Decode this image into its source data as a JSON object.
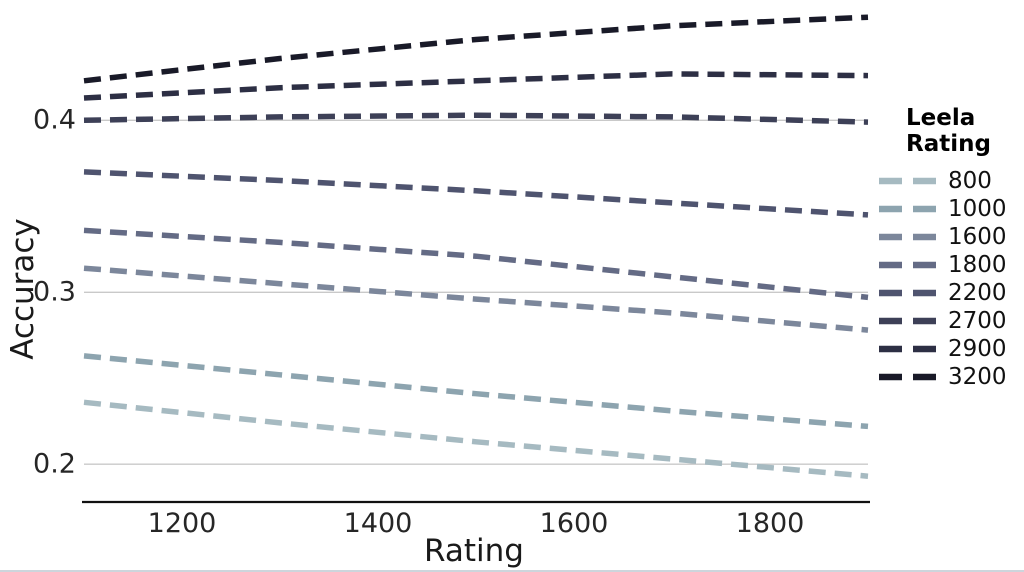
{
  "figure": {
    "background": "#ffffff",
    "bottom_edge_color": "#cdd5dc"
  },
  "chart_data": {
    "type": "line",
    "title": "",
    "xlabel": "Rating",
    "ylabel": "Accuracy",
    "line_style": "dashed",
    "grid": "horizontal-only",
    "grid_color": "#c9c9c9",
    "axis_line_color": "#111111",
    "x": [
      1100,
      1300,
      1500,
      1700,
      1900
    ],
    "xlim": [
      1100,
      1900
    ],
    "ylim": [
      0.178,
      0.47
    ],
    "xticks": [
      1200,
      1400,
      1600,
      1800
    ],
    "yticks": [
      0.2,
      0.3,
      0.4
    ],
    "legend_title": "Leela Rating",
    "legend_position": "right",
    "series": [
      {
        "name": "800",
        "color": "#a6bac1",
        "values": [
          0.236,
          0.224,
          0.213,
          0.203,
          0.193
        ]
      },
      {
        "name": "1000",
        "color": "#8da4af",
        "values": [
          0.263,
          0.252,
          0.241,
          0.231,
          0.222
        ]
      },
      {
        "name": "1600",
        "color": "#7c879b",
        "values": [
          0.314,
          0.305,
          0.296,
          0.288,
          0.278
        ]
      },
      {
        "name": "1800",
        "color": "#646b85",
        "values": [
          0.336,
          0.329,
          0.321,
          0.309,
          0.297
        ]
      },
      {
        "name": "2200",
        "color": "#4f546f",
        "values": [
          0.37,
          0.365,
          0.359,
          0.352,
          0.345
        ]
      },
      {
        "name": "2700",
        "color": "#3d4057",
        "values": [
          0.4,
          0.402,
          0.403,
          0.402,
          0.399
        ]
      },
      {
        "name": "2900",
        "color": "#2d2f44",
        "values": [
          0.413,
          0.419,
          0.423,
          0.427,
          0.426
        ]
      },
      {
        "name": "3200",
        "color": "#191a28",
        "values": [
          0.423,
          0.436,
          0.447,
          0.455,
          0.46
        ]
      }
    ]
  }
}
